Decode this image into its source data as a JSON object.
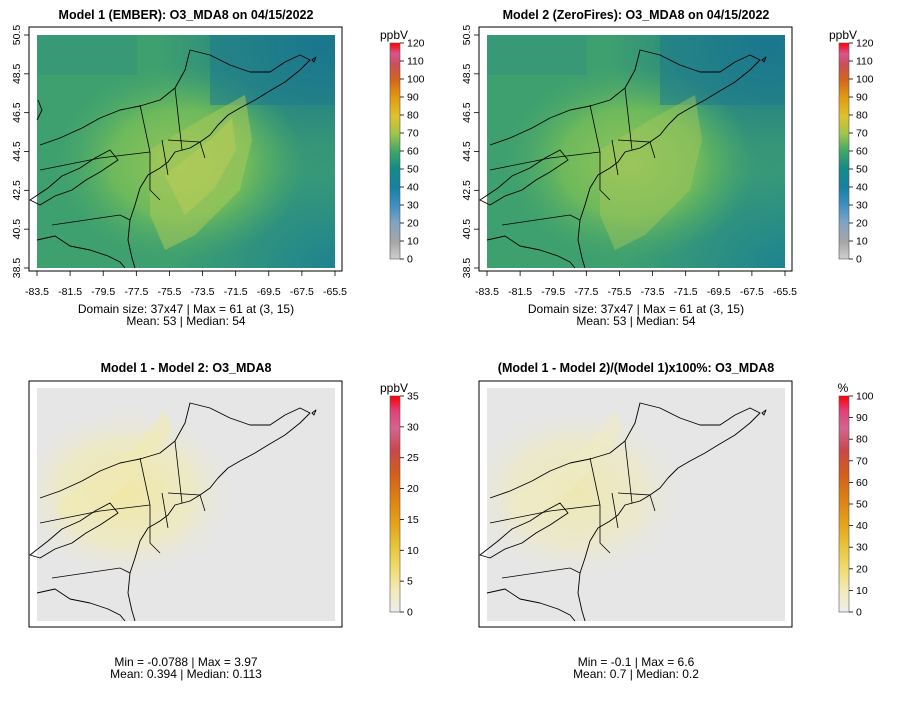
{
  "panels": [
    {
      "title": "Model 1 (EMBER): O3_MDA8 on 04/15/2022",
      "unit": "ppbV",
      "stats_line1": "Domain size: 37x47 | Max = 61 at (3, 15)",
      "stats_line2": "Mean: 53 |  Median: 54",
      "colorbar_ticks": [
        "0",
        "10",
        "20",
        "30",
        "40",
        "50",
        "60",
        "70",
        "80",
        "90",
        "100",
        "110",
        "120"
      ],
      "x_ticks": [
        "-83.5",
        "-81.5",
        "-79.5",
        "-77.5",
        "-75.5",
        "-73.5",
        "-71.5",
        "-69.5",
        "-67.5",
        "-65.5"
      ],
      "y_ticks": [
        "38.5",
        "40.5",
        "42.5",
        "44.5",
        "46.5",
        "48.5",
        "50.5"
      ]
    },
    {
      "title": "Model 2 (ZeroFires): O3_MDA8 on 04/15/2022",
      "unit": "ppbV",
      "stats_line1": "Domain size: 37x47 | Max = 61 at (3, 15)",
      "stats_line2": "Mean: 53 |  Median: 54",
      "colorbar_ticks": [
        "0",
        "10",
        "20",
        "30",
        "40",
        "50",
        "60",
        "70",
        "80",
        "90",
        "100",
        "110",
        "120"
      ],
      "x_ticks": [
        "-83.5",
        "-81.5",
        "-79.5",
        "-77.5",
        "-75.5",
        "-73.5",
        "-71.5",
        "-69.5",
        "-67.5",
        "-65.5"
      ],
      "y_ticks": [
        "38.5",
        "40.5",
        "42.5",
        "44.5",
        "46.5",
        "48.5",
        "50.5"
      ]
    },
    {
      "title": "Model 1 - Model 2: O3_MDA8",
      "unit": "ppbV",
      "stats_line1": "Min = -0.0788 | Max = 3.97",
      "stats_line2": "Mean: 0.394 |  Median: 0.113",
      "colorbar_ticks": [
        "0",
        "5",
        "10",
        "15",
        "20",
        "25",
        "30",
        "35"
      ]
    },
    {
      "title": "(Model 1 - Model 2)/(Model 1)x100%: O3_MDA8",
      "unit": "%",
      "stats_line1": "Min = -0.1 | Max = 6.6",
      "stats_line2": "Mean: 0.7 |  Median: 0.2",
      "colorbar_ticks": [
        "0",
        "10",
        "20",
        "30",
        "40",
        "50",
        "60",
        "70",
        "80",
        "90",
        "100"
      ]
    }
  ],
  "colors": {
    "ozone_scale": [
      "#bdbdbd",
      "#9e9e9e",
      "#7fa6c8",
      "#3f8fc2",
      "#1f7aa8",
      "#13858f",
      "#2e9e6e",
      "#6cb553",
      "#b8cc45",
      "#e8c12a",
      "#e3a10f",
      "#dc7d10",
      "#d2591d",
      "#c83f3a",
      "#cc4a6e",
      "#d65a8e",
      "#e0458a",
      "#e8304a",
      "#ff0000"
    ],
    "diff_scale": [
      "#eeeeee",
      "#f3ecc0",
      "#f1e28a",
      "#ecd04e",
      "#e8b725",
      "#e49612",
      "#dc7114",
      "#d05220",
      "#c8454a",
      "#d0608a",
      "#e0458a",
      "#ff0000"
    ],
    "background_diff": "#e6e6e6"
  }
}
